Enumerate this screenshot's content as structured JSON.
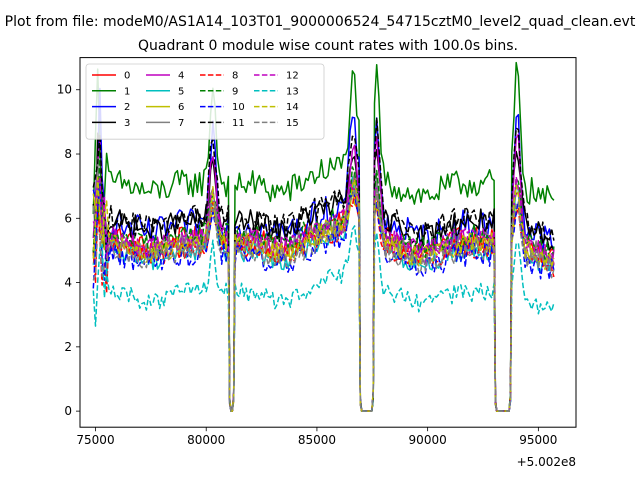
{
  "chart_data": {
    "type": "line",
    "suptitle": "Plot from file: modeM0/AS1A14_103T01_9000006524_54715cztM0_level2_quad_clean.evt",
    "title": "Quadrant 0 module wise count rates with 100.0s bins.",
    "xlabel": "",
    "ylabel": "",
    "x_offset_label": "+5.002e8",
    "xlim": [
      74300,
      96700
    ],
    "ylim": [
      -0.5,
      11.0
    ],
    "xticks": [
      75000,
      80000,
      85000,
      90000,
      95000
    ],
    "yticks": [
      0,
      2,
      4,
      6,
      8,
      10
    ],
    "legend_position": "upper left",
    "legend_columns": 4,
    "segments": [
      {
        "name": "seg1",
        "start": 74900,
        "end": 81000
      },
      {
        "name": "seg2",
        "start": 81300,
        "end": 86900
      },
      {
        "name": "seg3",
        "start": 87600,
        "end": 93000
      },
      {
        "name": "seg4",
        "start": 93800,
        "end": 95700
      }
    ],
    "gaps": [
      {
        "from": 81000,
        "to": 81300
      },
      {
        "from": 86900,
        "to": 87600
      },
      {
        "from": 93000,
        "to": 93800
      }
    ],
    "series": [
      {
        "name": "0",
        "color": "#ff0000",
        "dash": "solid",
        "base": 5.4,
        "noise": 0.35,
        "peak": 6.8
      },
      {
        "name": "1",
        "color": "#008000",
        "dash": "solid",
        "base": 7.1,
        "noise": 0.45,
        "peak": 10.4
      },
      {
        "name": "2",
        "color": "#0000ff",
        "dash": "solid",
        "base": 5.8,
        "noise": 0.5,
        "peak": 9.2
      },
      {
        "name": "3",
        "color": "#000000",
        "dash": "solid",
        "base": 5.9,
        "noise": 0.4,
        "peak": 7.8
      },
      {
        "name": "4",
        "color": "#bf00bf",
        "dash": "solid",
        "base": 5.3,
        "noise": 0.4,
        "peak": 8.6
      },
      {
        "name": "5",
        "color": "#00bfbf",
        "dash": "solid",
        "base": 5.0,
        "noise": 0.35,
        "peak": 6.9
      },
      {
        "name": "6",
        "color": "#bfbf00",
        "dash": "solid",
        "base": 5.2,
        "noise": 0.35,
        "peak": 6.5
      },
      {
        "name": "7",
        "color": "#808080",
        "dash": "solid",
        "base": 5.3,
        "noise": 0.35,
        "peak": 7.0
      },
      {
        "name": "8",
        "color": "#ff0000",
        "dash": "dashed",
        "base": 5.1,
        "noise": 0.35,
        "peak": 6.4
      },
      {
        "name": "9",
        "color": "#008000",
        "dash": "dashed",
        "base": 5.5,
        "noise": 0.35,
        "peak": 7.2
      },
      {
        "name": "10",
        "color": "#0000ff",
        "dash": "dashed",
        "base": 4.9,
        "noise": 0.4,
        "peak": 6.6
      },
      {
        "name": "11",
        "color": "#000000",
        "dash": "dashed",
        "base": 6.0,
        "noise": 0.4,
        "peak": 8.8
      },
      {
        "name": "12",
        "color": "#bf00bf",
        "dash": "dashed",
        "base": 5.4,
        "noise": 0.35,
        "peak": 7.0
      },
      {
        "name": "13",
        "color": "#00bfbf",
        "dash": "dashed",
        "base": 3.7,
        "noise": 0.3,
        "peak": 5.3
      },
      {
        "name": "14",
        "color": "#bfbf00",
        "dash": "dashed",
        "base": 5.2,
        "noise": 0.35,
        "peak": 6.8
      },
      {
        "name": "15",
        "color": "#808080",
        "dash": "dashed",
        "base": 5.0,
        "noise": 0.35,
        "peak": 6.6
      }
    ]
  }
}
